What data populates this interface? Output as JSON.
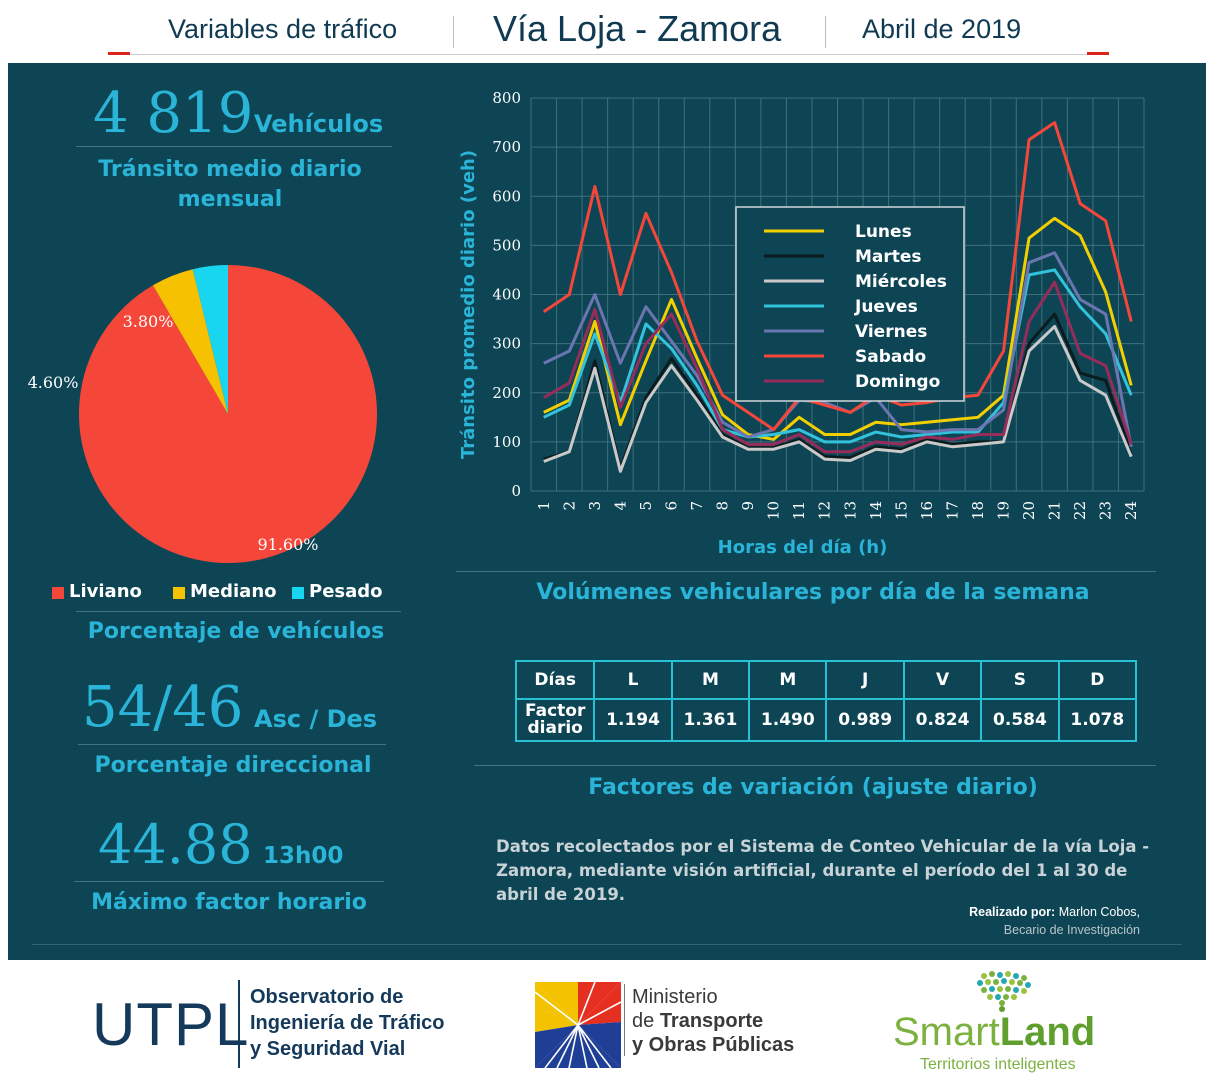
{
  "header": {
    "left": "Variables de tráfico",
    "center": "Vía Loja - Zamora",
    "right": "Abril de 2019"
  },
  "colors": {
    "panel": "#0e4555",
    "accent": "#2ab4d8",
    "liviano": "#f4473a",
    "mediano": "#f6c101",
    "pesado": "#18d6ef"
  },
  "kpis": {
    "tmd": {
      "value": "4 819",
      "unit": "Vehículos",
      "caption": "Tránsito medio diario mensual"
    },
    "pie_caption": "Porcentaje de vehículos",
    "direccional": {
      "value": "54/46",
      "unit": "Asc / Des",
      "caption": "Porcentaje direccional"
    },
    "horario": {
      "value": "44.88",
      "unit": "13h00",
      "caption": "Máximo factor horario"
    }
  },
  "chart_data": [
    {
      "type": "pie",
      "labels": [
        "Liviano",
        "Mediano",
        "Pesado"
      ],
      "values": [
        91.6,
        4.6,
        3.8
      ],
      "value_labels": [
        "91.60%",
        "4.60%",
        "3.80%"
      ],
      "colors": [
        "#f4473a",
        "#f6c101",
        "#18d6ef"
      ],
      "legend_placement": "bottom"
    },
    {
      "type": "line",
      "xlabel": "Horas del día (h)",
      "ylabel": "Tránsito promedio diario (veh)",
      "x": [
        1,
        2,
        3,
        4,
        5,
        6,
        7,
        8,
        9,
        10,
        11,
        12,
        13,
        14,
        15,
        16,
        17,
        18,
        19,
        20,
        21,
        22,
        23,
        24
      ],
      "xticks": [
        "1",
        "2",
        "3",
        "4",
        "5",
        "6",
        "7",
        "8",
        "9",
        "10",
        "11",
        "12",
        "13",
        "14",
        "15",
        "16",
        "17",
        "18",
        "19",
        "20",
        "21",
        "22",
        "23",
        "24"
      ],
      "ylim": [
        0,
        800
      ],
      "yticks": [
        "0",
        "100",
        "200",
        "300",
        "400",
        "500",
        "600",
        "700",
        "800"
      ],
      "grid": true,
      "legend_placement": "top-center",
      "series": [
        {
          "name": "Lunes",
          "color": "#f2cf00",
          "values": [
            160,
            185,
            345,
            135,
            265,
            390,
            270,
            155,
            115,
            105,
            150,
            115,
            115,
            140,
            135,
            140,
            145,
            150,
            195,
            515,
            555,
            520,
            405,
            215
          ]
        },
        {
          "name": "Martes",
          "color": "#0b1c1e",
          "values": [
            65,
            80,
            265,
            45,
            190,
            270,
            195,
            115,
            88,
            88,
            105,
            70,
            68,
            90,
            85,
            105,
            95,
            100,
            100,
            300,
            360,
            240,
            225,
            75
          ]
        },
        {
          "name": "Miércoles",
          "color": "#c9c9c9",
          "values": [
            60,
            80,
            250,
            40,
            180,
            255,
            185,
            110,
            85,
            85,
            100,
            65,
            62,
            85,
            80,
            100,
            90,
            95,
            100,
            285,
            335,
            225,
            195,
            70
          ]
        },
        {
          "name": "Jueves",
          "color": "#32c2dc",
          "values": [
            150,
            175,
            320,
            180,
            340,
            290,
            215,
            125,
            110,
            115,
            125,
            100,
            100,
            120,
            110,
            115,
            120,
            120,
            180,
            440,
            450,
            375,
            320,
            195
          ]
        },
        {
          "name": "Viernes",
          "color": "#6b75b0",
          "values": [
            260,
            285,
            400,
            260,
            375,
            305,
            235,
            140,
            110,
            125,
            185,
            180,
            160,
            190,
            125,
            120,
            125,
            125,
            165,
            465,
            485,
            390,
            360,
            90
          ]
        },
        {
          "name": "Sabado",
          "color": "#f4473a",
          "values": [
            365,
            400,
            620,
            400,
            565,
            445,
            305,
            195,
            160,
            125,
            190,
            175,
            160,
            195,
            175,
            180,
            190,
            195,
            285,
            715,
            750,
            585,
            550,
            345
          ]
        },
        {
          "name": "Domingo",
          "color": "#952c5a",
          "values": [
            190,
            220,
            370,
            170,
            300,
            360,
            250,
            125,
            95,
            95,
            115,
            80,
            80,
            100,
            95,
            110,
            105,
            115,
            115,
            345,
            425,
            280,
            255,
            95
          ]
        }
      ]
    }
  ],
  "table": {
    "title": "Volúmenes vehiculares por día de la semana",
    "head_label": "Días",
    "row_label": "Factor diario",
    "days": [
      "L",
      "M",
      "M",
      "J",
      "V",
      "S",
      "D"
    ],
    "factors": [
      "1.194",
      "1.361",
      "1.490",
      "0.989",
      "0.824",
      "0.584",
      "1.078"
    ],
    "caption": "Factores de variación (ajuste diario)"
  },
  "note": {
    "text": "Datos recolectados por el Sistema de Conteo Vehicular de la vía Loja - Zamora, mediante visión artificial, durante el período del 1 al 30 de abril de 2019.",
    "credit_label": "Realizado por:",
    "credit_name": "Marlon Cobos,",
    "credit_role": "Becario de Investigación"
  },
  "footer": {
    "utpl": "UTPL",
    "obs1": "Observatorio de",
    "obs2": "Ingeniería de Tráfico",
    "obs3": "y Seguridad Vial",
    "min1": "Ministerio",
    "min2_a": "de ",
    "min2_b": "Transporte",
    "min3": "y Obras Públicas",
    "sl_a": "Smart",
    "sl_b": "Land",
    "sl_tag": "Territorios inteligentes"
  }
}
